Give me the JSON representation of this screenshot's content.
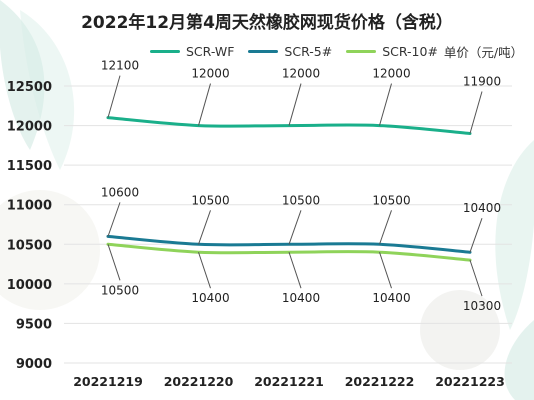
{
  "chart_data": {
    "type": "line",
    "title": "2022年12月第4周天然橡胶网现货价格（含税）",
    "unit_label": "单价（元/吨）",
    "categories": [
      "20221219",
      "20221220",
      "20221221",
      "20221222",
      "20221223"
    ],
    "series": [
      {
        "name": "SCR-WF",
        "values": [
          12100,
          12000,
          12000,
          12000,
          11900
        ],
        "color": "#1aaf8a"
      },
      {
        "name": "SCR-5#",
        "values": [
          10600,
          10500,
          10500,
          10500,
          10400
        ],
        "color": "#1a7a93"
      },
      {
        "name": "SCR-10#",
        "values": [
          10500,
          10400,
          10400,
          10400,
          10300
        ],
        "color": "#8fd35a"
      }
    ],
    "ylim": [
      9000,
      12500
    ],
    "yticks": [
      9000,
      9500,
      10000,
      10500,
      11000,
      11500,
      12000,
      12500
    ],
    "grid": true,
    "legend_position": "top"
  }
}
